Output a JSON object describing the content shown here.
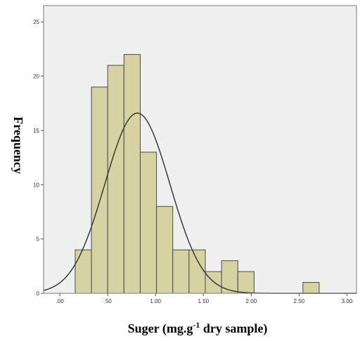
{
  "chart_data": {
    "type": "bar",
    "subtype": "histogram",
    "title": "",
    "xlabel": "Suger (mg.g",
    "xlabel_superscript": "-1",
    "xlabel_suffix": " dry sample)",
    "ylabel": "Frequency",
    "xlim": [
      -0.17,
      3.1
    ],
    "ylim": [
      0,
      26.5
    ],
    "x_ticks": [
      0,
      0.5,
      1.0,
      1.5,
      2.0,
      2.5,
      3.0
    ],
    "x_tick_labels": [
      ".00",
      ".50",
      "1.00",
      "1.50",
      "2.00",
      "2.50",
      "3.00"
    ],
    "y_ticks": [
      0,
      5,
      10,
      15,
      20,
      25
    ],
    "y_tick_labels": [
      "0",
      "5",
      "10",
      "15",
      "20",
      "25"
    ],
    "bin_width": 0.17,
    "bins": [
      {
        "start": 0.16,
        "count": 4
      },
      {
        "start": 0.33,
        "count": 19
      },
      {
        "start": 0.5,
        "count": 21
      },
      {
        "start": 0.67,
        "count": 22
      },
      {
        "start": 0.84,
        "count": 13
      },
      {
        "start": 1.01,
        "count": 8
      },
      {
        "start": 1.18,
        "count": 4
      },
      {
        "start": 1.35,
        "count": 4
      },
      {
        "start": 1.52,
        "count": 2
      },
      {
        "start": 1.69,
        "count": 3
      },
      {
        "start": 1.86,
        "count": 2
      },
      {
        "start": 2.54,
        "count": 1
      }
    ],
    "normal_curve": {
      "mean": 0.81,
      "sd": 0.34,
      "peak": 16.6
    },
    "grid": false,
    "colors": {
      "plot_background": "#f0f0f0",
      "bar_fill": "#d7d2a2",
      "bar_stroke": "#4a4a4a",
      "curve": "#3a3a3a",
      "frame": "#7a7a7a"
    }
  }
}
